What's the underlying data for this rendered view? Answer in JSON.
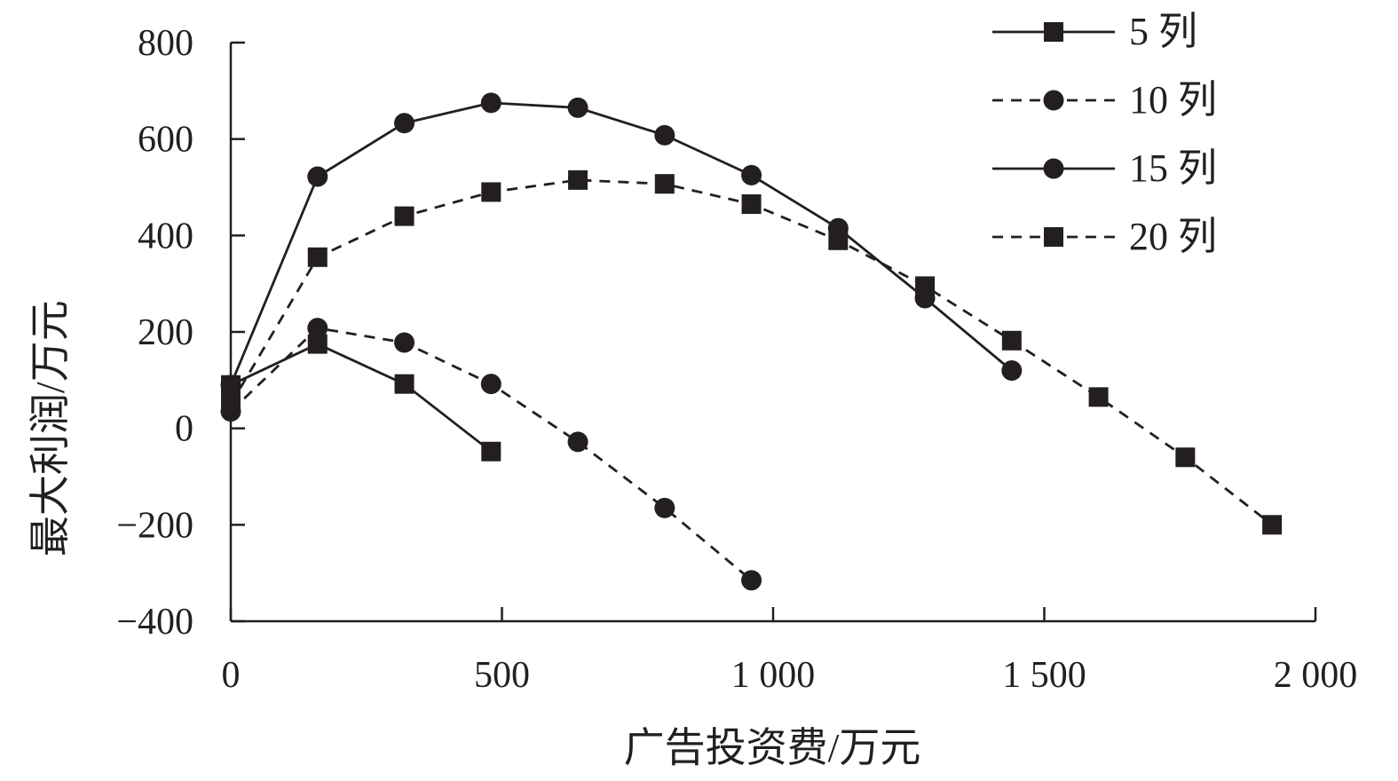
{
  "chart_data": {
    "type": "line",
    "xlabel": "广告投资费/万元",
    "ylabel": "最大利润/万元",
    "xlim": [
      0,
      2000
    ],
    "ylim": [
      -400,
      800
    ],
    "x_ticks": [
      0,
      500,
      1000,
      1500,
      2000
    ],
    "x_tick_labels": [
      "0",
      "500",
      "1 000",
      "1 500",
      "2 000"
    ],
    "y_ticks": [
      800,
      600,
      400,
      200,
      0,
      -200,
      -400
    ],
    "y_tick_labels": [
      "800",
      "600",
      "400",
      "200",
      "0",
      "−200",
      "−400"
    ],
    "grid": false,
    "legend_position": "top-right",
    "series": [
      {
        "name": "5 列",
        "line_style": "solid",
        "marker": "square",
        "x": [
          0,
          160,
          320,
          480
        ],
        "y": [
          90,
          175,
          92,
          -48
        ]
      },
      {
        "name": "10 列",
        "line_style": "dashed",
        "marker": "circle",
        "x": [
          0,
          160,
          320,
          480,
          640,
          800,
          960
        ],
        "y": [
          35,
          208,
          178,
          92,
          -28,
          -165,
          -315
        ]
      },
      {
        "name": "15 列",
        "line_style": "solid",
        "marker": "circle",
        "x": [
          0,
          160,
          320,
          480,
          640,
          800,
          960,
          1120,
          1280,
          1440
        ],
        "y": [
          90,
          522,
          633,
          675,
          665,
          608,
          525,
          415,
          270,
          120
        ]
      },
      {
        "name": "20 列",
        "line_style": "dashed",
        "marker": "square",
        "x": [
          0,
          160,
          320,
          480,
          640,
          800,
          960,
          1120,
          1280,
          1440,
          1600,
          1760,
          1920
        ],
        "y": [
          50,
          355,
          440,
          490,
          515,
          507,
          465,
          390,
          295,
          182,
          65,
          -60,
          -200
        ]
      }
    ]
  }
}
